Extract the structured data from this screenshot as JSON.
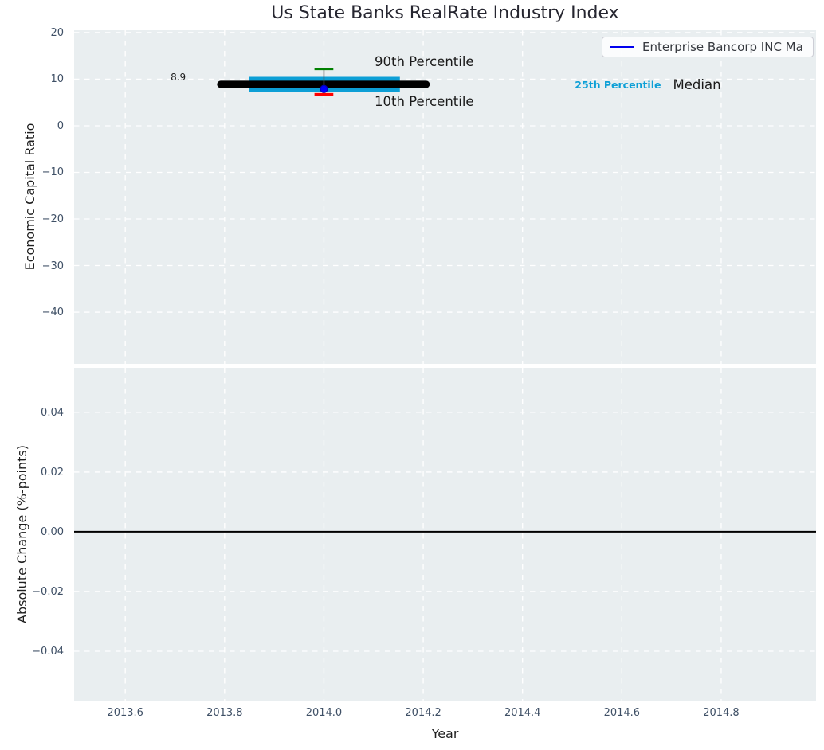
{
  "figure": {
    "title": "Us State Banks RealRate Industry Index",
    "background": "#ffffff",
    "plot_background": "#e9eef0",
    "grid_color": "#ffffff",
    "tick_color": "#3f5066"
  },
  "legend": {
    "label": "Enterprise Bancorp INC Ma",
    "line_color": "#0000ee"
  },
  "chart_data": [
    {
      "id": "economic-capital-ratio",
      "type": "scatter",
      "title": "Us State Banks RealRate Industry Index",
      "ylabel": "Economic Capital Ratio",
      "xlim": [
        2013.497,
        2014.991
      ],
      "ylim": [
        -51.1,
        20.5
      ],
      "grid": "white dashed, on",
      "legend_position": "upper right",
      "xticks": {
        "values": [
          2013.6,
          2013.8,
          2014.0,
          2014.2,
          2014.4,
          2014.6,
          2014.8
        ],
        "labels": []
      },
      "yticks": {
        "values": [
          20,
          10,
          0,
          -10,
          -20,
          -30,
          -40
        ],
        "labels": [
          "20",
          "10",
          "0",
          "−10",
          "−20",
          "−30",
          "−40"
        ]
      },
      "data_year": 2014.0,
      "percentiles": {
        "p10": 6.8,
        "p25": 7.3,
        "median": 8.9,
        "p75": 10.5,
        "p90": 12.2
      },
      "company_point": {
        "name": "Enterprise Bancorp INC Ma",
        "x": 2014.0,
        "y": 7.9
      },
      "elements": [
        {
          "name": "iqr-band",
          "kind": "hline",
          "y": 8.88,
          "x1": 2013.85,
          "x2": 2014.153,
          "color": "#0d9fd6",
          "lw": 19,
          "cap": "butt"
        },
        {
          "name": "median-line",
          "kind": "hline",
          "y": 8.9,
          "x1": 2013.792,
          "x2": 2014.206,
          "color": "#000000",
          "lw": 9,
          "cap": "round"
        },
        {
          "name": "percentile-whisker",
          "kind": "vline",
          "x": 2014.0,
          "y1": 6.75,
          "y2": 12.2,
          "color": "#5a5a5a",
          "lw": 1.5
        },
        {
          "name": "p90-cap",
          "kind": "hline",
          "y": 12.2,
          "x1": 2013.981,
          "x2": 2014.019,
          "color": "#008000",
          "lw": 3.2,
          "cap": "butt"
        },
        {
          "name": "p10-cap",
          "kind": "hline",
          "y": 6.75,
          "x1": 2013.981,
          "x2": 2014.019,
          "color": "#ff0000",
          "lw": 3.2,
          "cap": "butt"
        },
        {
          "name": "company-point-marker",
          "kind": "point",
          "x": 2014.0,
          "y": 7.9,
          "r": 4.5,
          "fill": "#0000ff",
          "stroke": "#0000b4",
          "sw": 1.2
        }
      ],
      "annotations": [
        {
          "name": "median-value-label",
          "text": "8.9",
          "x": 2013.722,
          "y": 10.35,
          "ha": "right",
          "size": 12,
          "color": "#1f1f1f",
          "bold": false
        },
        {
          "name": "p90-label",
          "text": "90th Percentile",
          "x": 2014.102,
          "y": 13.67,
          "ha": "left",
          "size": 16.5,
          "color": "#1a1a1a",
          "bold": false
        },
        {
          "name": "p10-label",
          "text": "10th Percentile",
          "x": 2014.102,
          "y": 5.1,
          "ha": "left",
          "size": 16.5,
          "color": "#1a1a1a",
          "bold": false
        },
        {
          "name": "p25-label",
          "text": "25th Percentile",
          "x": 2014.592,
          "y": 8.75,
          "ha": "center",
          "size": 12.5,
          "color": "#0d9fd6",
          "bold": true
        },
        {
          "name": "median-label",
          "text": "Median",
          "x": 2014.703,
          "y": 8.75,
          "ha": "left",
          "size": 16.5,
          "color": "#1a1a1a",
          "bold": false
        }
      ]
    },
    {
      "id": "absolute-change",
      "type": "line",
      "ylabel": "Absolute Change (%-points)",
      "xlabel": "Year",
      "xlim": [
        2013.497,
        2014.991
      ],
      "ylim": [
        -0.0568,
        0.0549
      ],
      "grid": "white dashed, on",
      "xticks": {
        "values": [
          2013.6,
          2013.8,
          2014.0,
          2014.2,
          2014.4,
          2014.6,
          2014.8
        ],
        "labels": [
          "2013.6",
          "2013.8",
          "2014.0",
          "2014.2",
          "2014.4",
          "2014.6",
          "2014.8"
        ]
      },
      "yticks": {
        "values": [
          0.04,
          0.02,
          0.0,
          -0.02,
          -0.04
        ],
        "labels": [
          "0.04",
          "0.02",
          "0.00",
          "−0.02",
          "−0.04"
        ]
      },
      "elements": [
        {
          "name": "zero-change-line",
          "kind": "hline",
          "y": 0.0,
          "x1": 2013.497,
          "x2": 2014.991,
          "color": "#000000",
          "lw": 2,
          "cap": "butt"
        }
      ],
      "annotations": []
    }
  ]
}
